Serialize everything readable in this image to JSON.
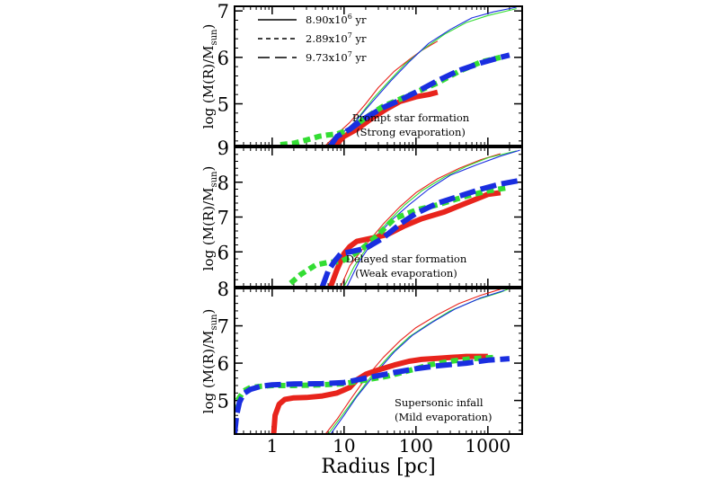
{
  "chart_data": {
    "type": "line",
    "xscale": "log",
    "xlim": [
      0.3,
      3000
    ],
    "xlabel": "Radius [pc]",
    "x_ticks": [
      1,
      10,
      100,
      1000
    ],
    "x_tick_labels": [
      "1",
      "10",
      "100",
      "1000"
    ],
    "legend": {
      "position": "top-left",
      "entries": [
        {
          "label": "8.90x10",
          "exp": "6",
          "suffix": " yr",
          "dash": "solid"
        },
        {
          "label": "2.89x10",
          "exp": "7",
          "suffix": " yr",
          "dash": "short-dash"
        },
        {
          "label": "9.73x10",
          "exp": "7",
          "suffix": " yr",
          "dash": "long-dash"
        }
      ]
    },
    "colors": {
      "red": "#e8241c",
      "green": "#33dd33",
      "blue": "#1a2ee0"
    },
    "panels": [
      {
        "ylabel": "log (M(R)/M",
        "ylabel_sub": "sun",
        "ylabel_tail": ")",
        "ylim": [
          4.1,
          7.1
        ],
        "y_ticks": [
          5,
          6,
          7
        ],
        "y_tick_labels": [
          "5",
          "6",
          "7"
        ],
        "annotation": [
          "Prompt star formation",
          "(Strong evaporation)"
        ],
        "series": [
          {
            "color": "red",
            "style": "thin",
            "x": [
              5.5,
              8,
              12,
              20,
              30,
              50,
              80,
              120,
              200
            ],
            "y": [
              4.1,
              4.35,
              4.6,
              5.0,
              5.35,
              5.7,
              5.95,
              6.15,
              6.35
            ]
          },
          {
            "color": "green",
            "style": "thin",
            "x": [
              6,
              9,
              14,
              25,
              40,
              70,
              120,
              250,
              500,
              1000,
              2500
            ],
            "y": [
              4.1,
              4.35,
              4.6,
              5.1,
              5.45,
              5.85,
              6.15,
              6.5,
              6.75,
              6.9,
              7.05
            ]
          },
          {
            "color": "blue",
            "style": "thin",
            "x": [
              6.5,
              10,
              15,
              25,
              45,
              80,
              150,
              300,
              600,
              1200,
              2500
            ],
            "y": [
              4.1,
              4.4,
              4.65,
              5.05,
              5.5,
              5.9,
              6.3,
              6.6,
              6.85,
              6.98,
              7.08
            ]
          },
          {
            "color": "red",
            "style": "thick",
            "x": [
              7.5,
              10,
              15,
              25,
              40,
              60,
              100,
              150,
              200
            ],
            "y": [
              4.1,
              4.3,
              4.45,
              4.7,
              4.9,
              5.05,
              5.15,
              5.2,
              5.25
            ]
          },
          {
            "color": "green",
            "style": "thick",
            "x": [
              1.3,
              2,
              3,
              4.5,
              6,
              8,
              12,
              20,
              35,
              60,
              100,
              200,
              400,
              800,
              1500
            ],
            "y": [
              4.12,
              4.15,
              4.22,
              4.3,
              4.33,
              4.35,
              4.45,
              4.7,
              4.95,
              5.1,
              5.25,
              5.45,
              5.7,
              5.9,
              6.0
            ]
          },
          {
            "color": "blue",
            "style": "thick",
            "x": [
              6.5,
              8,
              12,
              20,
              35,
              60,
              100,
              200,
              400,
              800,
              1500,
              2000
            ],
            "y": [
              4.1,
              4.3,
              4.45,
              4.7,
              4.92,
              5.08,
              5.25,
              5.5,
              5.72,
              5.88,
              6.0,
              6.05
            ]
          }
        ]
      },
      {
        "ylabel": "log (M(R)/M",
        "ylabel_sub": "sun",
        "ylabel_tail": ")",
        "ylim": [
          5.0,
          9.0
        ],
        "y_ticks": [
          6,
          7,
          8,
          9
        ],
        "y_tick_labels": [
          "6",
          "7",
          "8",
          "9"
        ],
        "annotation": [
          "Delayed star formation",
          "(Weak evaporation)"
        ],
        "series": [
          {
            "color": "red",
            "style": "thin",
            "x": [
              9,
              12,
              20,
              35,
              60,
              100,
              200,
              400,
              800,
              1500
            ],
            "y": [
              5.0,
              5.6,
              6.2,
              6.8,
              7.3,
              7.7,
              8.1,
              8.4,
              8.65,
              8.82
            ]
          },
          {
            "color": "green",
            "style": "thin",
            "x": [
              10,
              14,
              22,
              40,
              70,
              120,
              250,
              500,
              1000,
              2500
            ],
            "y": [
              5.0,
              5.6,
              6.2,
              6.85,
              7.35,
              7.75,
              8.15,
              8.45,
              8.7,
              8.9
            ]
          },
          {
            "color": "blue",
            "style": "thin",
            "x": [
              11,
              16,
              25,
              45,
              80,
              150,
              300,
              700,
              1500,
              2800
            ],
            "y": [
              5.0,
              5.7,
              6.3,
              6.9,
              7.35,
              7.8,
              8.2,
              8.5,
              8.75,
              8.92
            ]
          },
          {
            "color": "red",
            "style": "thick",
            "x": [
              6.5,
              8,
              10,
              12,
              15,
              25,
              40,
              70,
              120,
              250,
              500,
              1000,
              1500
            ],
            "y": [
              5.0,
              5.5,
              5.95,
              6.15,
              6.3,
              6.4,
              6.5,
              6.75,
              6.95,
              7.15,
              7.4,
              7.65,
              7.7
            ]
          },
          {
            "color": "green",
            "style": "thick",
            "x": [
              1.8,
              2.5,
              4,
              6,
              9,
              12,
              18,
              30,
              50,
              100,
              200,
              500,
              1000,
              2000
            ],
            "y": [
              5.1,
              5.35,
              5.62,
              5.7,
              5.72,
              5.85,
              6.1,
              6.5,
              6.95,
              7.2,
              7.35,
              7.6,
              7.75,
              7.85
            ]
          },
          {
            "color": "blue",
            "style": "thick",
            "x": [
              5,
              6,
              7.5,
              9,
              12,
              20,
              35,
              60,
              100,
              200,
              400,
              800,
              1500,
              2800
            ],
            "y": [
              5.0,
              5.45,
              5.75,
              5.95,
              6.0,
              6.1,
              6.4,
              6.8,
              7.1,
              7.4,
              7.6,
              7.8,
              7.95,
              8.05
            ]
          }
        ]
      },
      {
        "ylabel": "log (M(R)/M",
        "ylabel_sub": "sun",
        "ylabel_tail": ")",
        "ylim": [
          4.1,
          8.0
        ],
        "y_ticks": [
          5,
          6,
          7,
          8
        ],
        "y_tick_labels": [
          "5",
          "6",
          "7",
          "8"
        ],
        "annotation": [
          "Supersonic infall",
          "(Mild evaporation)"
        ],
        "series": [
          {
            "color": "red",
            "style": "thin",
            "x": [
              5.5,
              8,
              12,
              20,
              35,
              60,
              100,
              200,
              400,
              800,
              1500
            ],
            "y": [
              4.1,
              4.5,
              5.0,
              5.6,
              6.15,
              6.6,
              6.95,
              7.3,
              7.6,
              7.82,
              7.98
            ]
          },
          {
            "color": "green",
            "style": "thin",
            "x": [
              6,
              9,
              14,
              25,
              45,
              80,
              150,
              300,
              700,
              1500,
              2000
            ],
            "y": [
              4.1,
              4.55,
              5.05,
              5.7,
              6.25,
              6.7,
              7.05,
              7.4,
              7.7,
              7.9,
              8.0
            ]
          },
          {
            "color": "blue",
            "style": "thin",
            "x": [
              6.5,
              10,
              15,
              28,
              50,
              90,
              170,
              350,
              800,
              1700
            ],
            "y": [
              4.1,
              4.6,
              5.1,
              5.75,
              6.3,
              6.75,
              7.1,
              7.45,
              7.75,
              7.95
            ]
          },
          {
            "color": "red",
            "style": "thick",
            "x": [
              1.05,
              1.1,
              1.25,
              1.5,
              2,
              3,
              5,
              8,
              12,
              15,
              20,
              30,
              50,
              80,
              120,
              200,
              300,
              500,
              800,
              1000
            ],
            "y": [
              4.1,
              4.6,
              4.9,
              5.03,
              5.07,
              5.08,
              5.12,
              5.2,
              5.35,
              5.55,
              5.7,
              5.82,
              5.95,
              6.05,
              6.1,
              6.13,
              6.15,
              6.18,
              6.18,
              6.18
            ]
          },
          {
            "color": "green",
            "style": "thick",
            "x": [
              0.3,
              0.33,
              0.4,
              0.5,
              0.7,
              1,
              2,
              5,
              10,
              20,
              40,
              80,
              150,
              300,
              600,
              1200
            ],
            "y": [
              4.7,
              5.0,
              5.25,
              5.35,
              5.38,
              5.4,
              5.4,
              5.42,
              5.45,
              5.55,
              5.65,
              5.8,
              5.95,
              6.05,
              6.12,
              6.15
            ]
          },
          {
            "color": "blue",
            "style": "thick",
            "x": [
              0.3,
              0.32,
              0.35,
              0.4,
              0.5,
              0.7,
              1,
              2,
              5,
              10,
              20,
              50,
              100,
              200,
              500,
              1000,
              2000
            ],
            "y": [
              4.1,
              4.6,
              4.95,
              5.18,
              5.3,
              5.38,
              5.42,
              5.44,
              5.45,
              5.48,
              5.6,
              5.75,
              5.85,
              5.93,
              6.0,
              6.08,
              6.12
            ]
          }
        ]
      }
    ]
  }
}
